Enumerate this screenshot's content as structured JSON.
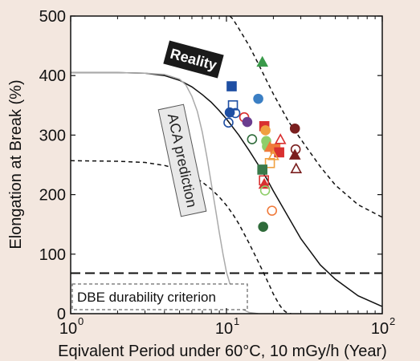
{
  "chart_data": {
    "type": "scatter",
    "xlabel": "Eqivalent Period under  60°C, 10 mGy/h (Year)",
    "ylabel": "Elongation at Break (%)",
    "xscale": "log",
    "xlim": [
      1,
      100
    ],
    "ylim": [
      0,
      500
    ],
    "xticks": [
      {
        "value": 1,
        "label": "10",
        "exp": "0"
      },
      {
        "value": 10,
        "label": "10",
        "exp": "1"
      },
      {
        "value": 100,
        "label": "10",
        "exp": "2"
      }
    ],
    "yticks": [
      0,
      100,
      200,
      300,
      400,
      500
    ],
    "annotations": {
      "reality": "Reality",
      "aca": "ACA prediction",
      "dbe": "DBE durability criterion"
    },
    "colors": {
      "background": "#f3e7df",
      "plot_background": "#ffffff",
      "reality_box": "#1a1a1a"
    },
    "curves": [
      {
        "name": "reality",
        "style": "solid",
        "color": "#111111",
        "x": [
          1,
          2,
          3,
          4,
          5,
          6,
          7,
          8,
          9,
          10,
          12,
          14,
          16,
          18,
          20,
          25,
          30,
          40,
          50,
          70,
          100
        ],
        "y": [
          405,
          405,
          404,
          400,
          392,
          381,
          368,
          355,
          341,
          327,
          300,
          274,
          250,
          228,
          206,
          162,
          126,
          82,
          58,
          30,
          12
        ]
      },
      {
        "name": "upper-bound",
        "style": "dashed",
        "color": "#111111",
        "x": [
          10.5,
          11,
          12,
          14,
          16,
          18,
          20,
          25,
          30,
          40,
          50,
          70,
          100
        ],
        "y": [
          500,
          495,
          479,
          450,
          420,
          393,
          369,
          323,
          293,
          247,
          216,
          183,
          162
        ]
      },
      {
        "name": "lower-bound",
        "style": "dashed",
        "color": "#111111",
        "x": [
          1,
          2,
          3,
          4,
          5,
          6,
          7,
          8,
          9,
          10,
          11,
          12,
          13,
          14,
          15,
          16,
          17,
          18,
          19,
          20,
          21,
          22,
          23,
          24,
          25,
          26
        ],
        "y": [
          257,
          256,
          254,
          249,
          242,
          232,
          221,
          209,
          196,
          182,
          167,
          151,
          134,
          118,
          102,
          87,
          73,
          59,
          46,
          33,
          23,
          14,
          7,
          3,
          1,
          0
        ]
      },
      {
        "name": "aca-prediction",
        "style": "solid",
        "color": "#aaaaaa",
        "x": [
          1,
          2,
          3,
          4,
          5,
          5.5,
          6,
          6.5,
          7,
          7.5,
          8,
          8.5,
          9,
          9.5,
          10,
          11,
          12,
          13,
          14,
          15,
          16
        ],
        "y": [
          405,
          405,
          404,
          402,
          394,
          384,
          365,
          340,
          305,
          262,
          218,
          176,
          136,
          100,
          70,
          33,
          14,
          6,
          2,
          1,
          0
        ]
      },
      {
        "name": "dbe-criterion",
        "style": "long-dashed",
        "color": "#111111",
        "x": [
          1,
          100
        ],
        "y": [
          68,
          68
        ]
      }
    ],
    "points": [
      {
        "x": 17,
        "y": 422,
        "shape": "triangle",
        "filled": true,
        "color": "#3a9a4a"
      },
      {
        "x": 10.8,
        "y": 382,
        "shape": "square",
        "filled": true,
        "color": "#1f4fa3"
      },
      {
        "x": 16,
        "y": 361,
        "shape": "circle",
        "filled": true,
        "color": "#3b7fc4"
      },
      {
        "x": 11,
        "y": 350,
        "shape": "square",
        "filled": false,
        "color": "#1f4fa3"
      },
      {
        "x": 10.5,
        "y": 338,
        "shape": "circle",
        "filled": true,
        "color": "#1f4fa3"
      },
      {
        "x": 11.4,
        "y": 337,
        "shape": "circle",
        "filled": false,
        "color": "#1f4fa3"
      },
      {
        "x": 10.3,
        "y": 321,
        "shape": "circle",
        "filled": false,
        "color": "#1f4fa3"
      },
      {
        "x": 13,
        "y": 330,
        "shape": "circle",
        "filled": false,
        "color": "#d93030"
      },
      {
        "x": 13.6,
        "y": 322,
        "shape": "circle",
        "filled": true,
        "color": "#6a3d8f"
      },
      {
        "x": 17.5,
        "y": 315,
        "shape": "square",
        "filled": true,
        "color": "#d93030"
      },
      {
        "x": 17.8,
        "y": 308,
        "shape": "circle",
        "filled": true,
        "color": "#f0a040"
      },
      {
        "x": 14.6,
        "y": 293,
        "shape": "circle",
        "filled": false,
        "color": "#2f6b3a"
      },
      {
        "x": 18,
        "y": 290,
        "shape": "circle",
        "filled": true,
        "color": "#8fce6a"
      },
      {
        "x": 18.2,
        "y": 281,
        "shape": "circle",
        "filled": true,
        "color": "#8fce6a"
      },
      {
        "x": 19,
        "y": 279,
        "shape": "triangle",
        "filled": true,
        "color": "#f07a3a"
      },
      {
        "x": 20.6,
        "y": 277,
        "shape": "square",
        "filled": true,
        "color": "#f07a3a"
      },
      {
        "x": 21.8,
        "y": 271,
        "shape": "square",
        "filled": true,
        "color": "#d93030"
      },
      {
        "x": 22.2,
        "y": 292,
        "shape": "triangle",
        "filled": false,
        "color": "#d93030"
      },
      {
        "x": 20,
        "y": 265,
        "shape": "triangle",
        "filled": false,
        "color": "#f0a040"
      },
      {
        "x": 19,
        "y": 253,
        "shape": "square",
        "filled": false,
        "color": "#f0a040"
      },
      {
        "x": 17,
        "y": 242,
        "shape": "square",
        "filled": true,
        "color": "#3a7a4a"
      },
      {
        "x": 17.4,
        "y": 224,
        "shape": "square",
        "filled": false,
        "color": "#d93030"
      },
      {
        "x": 17.5,
        "y": 217,
        "shape": "triangle",
        "filled": true,
        "color": "#d93030"
      },
      {
        "x": 17.7,
        "y": 207,
        "shape": "circle",
        "filled": false,
        "color": "#8fce6a"
      },
      {
        "x": 19.6,
        "y": 173,
        "shape": "circle",
        "filled": false,
        "color": "#f07a3a"
      },
      {
        "x": 17.2,
        "y": 146,
        "shape": "circle",
        "filled": true,
        "color": "#2f6b3a"
      },
      {
        "x": 27.5,
        "y": 311,
        "shape": "circle",
        "filled": true,
        "color": "#7a1f1f"
      },
      {
        "x": 27.8,
        "y": 276,
        "shape": "circle",
        "filled": false,
        "color": "#7a1f1f"
      },
      {
        "x": 27.5,
        "y": 266,
        "shape": "triangle",
        "filled": true,
        "color": "#7a1f1f"
      },
      {
        "x": 28,
        "y": 243,
        "shape": "triangle",
        "filled": false,
        "color": "#7a1f1f"
      }
    ]
  }
}
